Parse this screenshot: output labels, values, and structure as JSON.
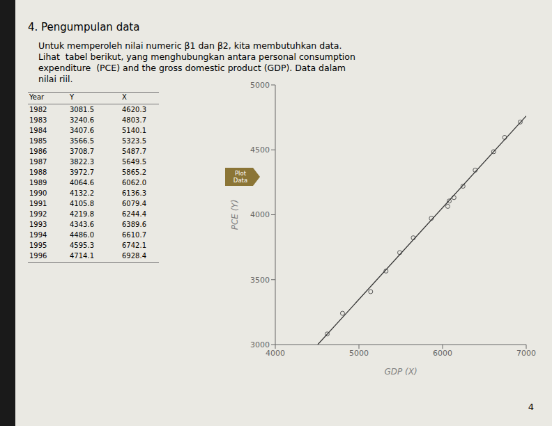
{
  "title": "4. Pengumpulan data",
  "paragraph": [
    "Untuk memperoleh nilai numeric β1 dan β2, kita membutuhkan data.",
    "Lihat  tabel berikut, yang menghubungkan antara personal consumption",
    "expenditure  (PCE) and the gross domestic product (GDP). Data dalam",
    "nilai riil."
  ],
  "table": {
    "headers": [
      "Year",
      "Y",
      "X"
    ],
    "rows": [
      [
        "1982",
        "3081.5",
        "4620.3"
      ],
      [
        "1983",
        "3240.6",
        "4803.7"
      ],
      [
        "1984",
        "3407.6",
        "5140.1"
      ],
      [
        "1985",
        "3566.5",
        "5323.5"
      ],
      [
        "1986",
        "3708.7",
        "5487.7"
      ],
      [
        "1987",
        "3822.3",
        "5649.5"
      ],
      [
        "1988",
        "3972.7",
        "5865.2"
      ],
      [
        "1989",
        "4064.6",
        "6062.0"
      ],
      [
        "1990",
        "4132.2",
        "6136.3"
      ],
      [
        "1991",
        "4105.8",
        "6079.4"
      ],
      [
        "1992",
        "4219.8",
        "6244.4"
      ],
      [
        "1993",
        "4343.6",
        "6389.6"
      ],
      [
        "1994",
        "4486.0",
        "6610.7"
      ],
      [
        "1995",
        "4595.3",
        "6742.1"
      ],
      [
        "1996",
        "4714.1",
        "6928.4"
      ]
    ]
  },
  "button": {
    "label": "Plot\nData",
    "color": "#8B7536"
  },
  "page_number": "4",
  "bg_color": "#eae9e3",
  "left_bar_color": "#1a1a1a",
  "chart_data": {
    "type": "scatter",
    "xlabel": "GDP (X)",
    "ylabel": "PCE (Y)",
    "xlim": [
      4000,
      7000
    ],
    "ylim": [
      3000,
      5000
    ],
    "xticks": [
      4000,
      5000,
      6000,
      7000
    ],
    "yticks": [
      3000,
      3500,
      4000,
      4500,
      5000
    ],
    "grid": false,
    "series": [
      {
        "type": "scatter",
        "marker": "circle",
        "color": "#555555",
        "x": [
          4620.3,
          4803.7,
          5140.1,
          5323.5,
          5487.7,
          5649.5,
          5865.2,
          6062.0,
          6136.3,
          6079.4,
          6244.4,
          6389.6,
          6610.7,
          6742.1,
          6928.4
        ],
        "values": [
          3081.5,
          3240.6,
          3407.6,
          3566.5,
          3708.7,
          3822.3,
          3972.7,
          4064.6,
          4132.2,
          4105.8,
          4219.8,
          4343.6,
          4486.0,
          4595.3,
          4714.1
        ]
      },
      {
        "type": "line",
        "line_style": "solid",
        "color": "#333333",
        "x": [
          4507.4,
          7000
        ],
        "values": [
          3000.0,
          4760.8
        ]
      }
    ]
  }
}
